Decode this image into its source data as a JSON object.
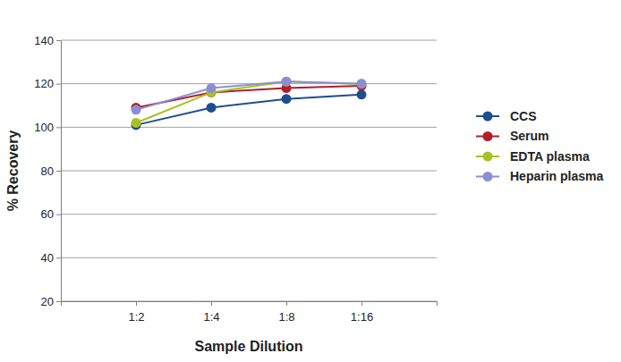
{
  "chart_data": {
    "type": "line",
    "x_label": "Sample Dilution",
    "y_label": "% Recovery",
    "categories": [
      "1:2",
      "1:4",
      "1:8",
      "1:16"
    ],
    "series": [
      {
        "name": "CCS",
        "color": "#1f4e8c",
        "values": [
          101,
          109,
          113,
          115
        ]
      },
      {
        "name": "Serum",
        "color": "#b0202a",
        "values": [
          109,
          116,
          118,
          119
        ]
      },
      {
        "name": "EDTA plasma",
        "color": "#a9c022",
        "values": [
          102,
          116,
          121,
          120
        ]
      },
      {
        "name": "Heparin plasma",
        "color": "#8a8fd4",
        "values": [
          108,
          118,
          121,
          120
        ]
      }
    ],
    "ylim": [
      20,
      140
    ],
    "yticks": [
      20,
      40,
      60,
      80,
      100,
      120,
      140
    ],
    "grid": true,
    "legend": "right",
    "marker": "circle",
    "line_style": "solid"
  }
}
